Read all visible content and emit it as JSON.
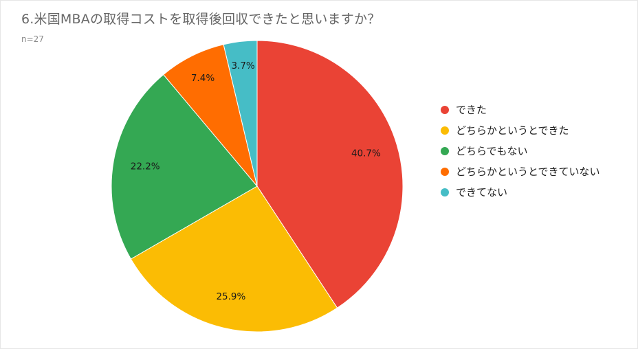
{
  "chart_data": {
    "type": "pie",
    "title": "6.米国MBAの取得コストを取得後回収できたと思いますか？",
    "subtitle": "n=27",
    "categories": [
      "できた",
      "どちらかというとできた",
      "どちらでもない",
      "どちらかというとできていない",
      "できてない"
    ],
    "values": [
      40.7,
      25.9,
      22.2,
      7.4,
      3.7
    ],
    "value_labels": [
      "40.7%",
      "25.9%",
      "22.2%",
      "7.4%",
      "3.7%"
    ],
    "colors": [
      "#ea4335",
      "#fbbc04",
      "#34a853",
      "#ff6d01",
      "#46bdc6"
    ],
    "legend_position": "right"
  }
}
